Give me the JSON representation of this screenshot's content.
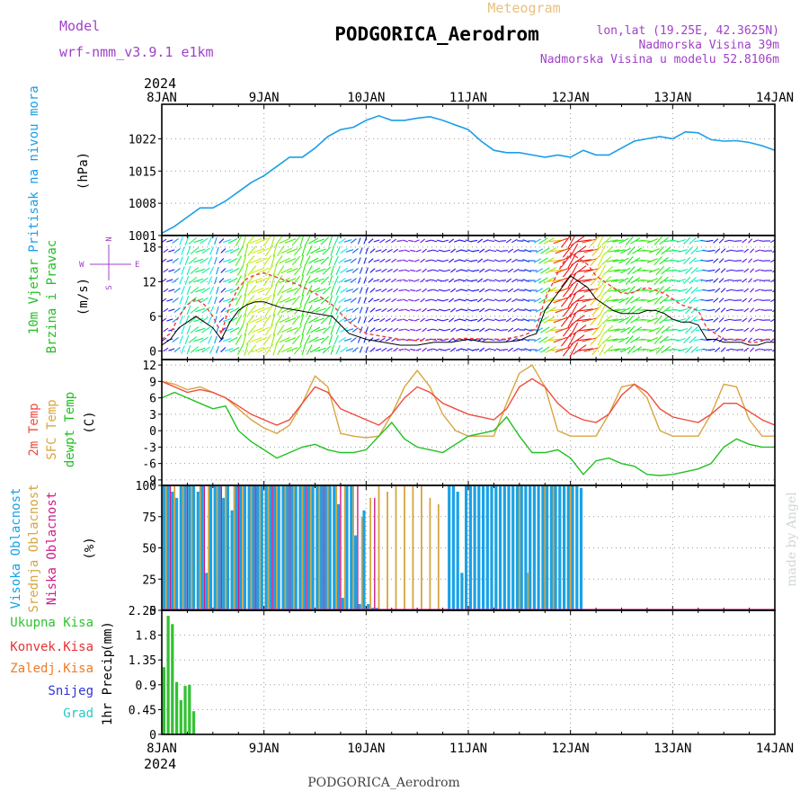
{
  "header": {
    "model_label": "Model",
    "model_name": "wrf-nmm_v3.9.1 e1km",
    "type_label": "Meteogram",
    "station": "PODGORICA_Aerodrom",
    "coords": "lon,lat (19.25E, 42.3625N)",
    "elevation": "Nadmorska Visina 39m",
    "model_elevation": "Nadmorska Visina u modelu 52.8106m",
    "footer_station": "PODGORICA_Aerodrom",
    "credit": "made by Angel"
  },
  "colors": {
    "pressure": "#1a9ee8",
    "temp2m": "#ef4b3c",
    "sfc": "#d9a640",
    "dewpt": "#22c022",
    "high_cloud": "#19a2e6",
    "mid_cloud": "#d4a640",
    "low_cloud": "#d01c8a",
    "precip": "#31c231",
    "conv": "#e63232",
    "frozen": "#f07a28",
    "snow": "#3232d2",
    "hail": "#28c8c8",
    "wind_label": "#22c022",
    "wind_axis": "#a040c8"
  },
  "chart_data": [
    {
      "id": "pressure",
      "type": "line",
      "ylabel": "Pritisak na nivou mora",
      "unit": "(hPa)",
      "yticks": [
        1001,
        1008,
        1015,
        1022
      ],
      "ylim": [
        1001,
        1029.5
      ],
      "x_hours": [
        0,
        3,
        6,
        9,
        12,
        15,
        18,
        21,
        24,
        27,
        30,
        33,
        36,
        39,
        42,
        45,
        48,
        51,
        54,
        57,
        60,
        63,
        66,
        69,
        72,
        75,
        78,
        81,
        84,
        87,
        90,
        93,
        96,
        99,
        102,
        105,
        108,
        111,
        114,
        117,
        120,
        123,
        126,
        129,
        132,
        135,
        138,
        141,
        144
      ],
      "values": [
        1001.5,
        1003.0,
        1005.0,
        1007.0,
        1007.0,
        1008.5,
        1010.5,
        1012.5,
        1014.0,
        1016.0,
        1018.0,
        1018.0,
        1020.0,
        1022.5,
        1024.0,
        1024.5,
        1026.0,
        1027.0,
        1026.0,
        1026.0,
        1026.5,
        1026.8,
        1026.0,
        1025.0,
        1024.0,
        1021.5,
        1019.5,
        1019.0,
        1019.0,
        1018.5,
        1018.0,
        1018.5,
        1018.0,
        1019.5,
        1018.5,
        1018.5,
        1020.0,
        1021.5,
        1022.0,
        1022.5,
        1022.0,
        1023.5,
        1023.3,
        1021.8,
        1021.5,
        1021.6,
        1021.2,
        1020.5,
        1019.5
      ]
    },
    {
      "id": "wind",
      "type": "line",
      "ylabel": "10m Vjetar",
      "ylabel2": "Brzina i Pravac",
      "unit": "(m/s)",
      "yticks": [
        0,
        6,
        12,
        18
      ],
      "ylim": [
        -1.5,
        20
      ],
      "compass": {
        "n": "N",
        "s": "S",
        "e": "E",
        "w": "W"
      },
      "x_hours": [
        0,
        2,
        4,
        6,
        8,
        10,
        12,
        14,
        16,
        18,
        20,
        22,
        24,
        28,
        32,
        36,
        40,
        44,
        48,
        52,
        56,
        60,
        64,
        68,
        72,
        76,
        80,
        84,
        86,
        88,
        90,
        92,
        94,
        96,
        98,
        100,
        102,
        104,
        106,
        108,
        110,
        112,
        114,
        116,
        118,
        120,
        122,
        124,
        126,
        128,
        130,
        132,
        134,
        136,
        138,
        140,
        142,
        144
      ],
      "speed": [
        1,
        2,
        4,
        5,
        6,
        5,
        4,
        2,
        5,
        7,
        8,
        8.5,
        8.5,
        7.5,
        7,
        6.5,
        6,
        3,
        2,
        1.5,
        1,
        1,
        1.5,
        1.5,
        2,
        1.5,
        1.5,
        1.8,
        2.5,
        3,
        7,
        9,
        11,
        13,
        12,
        11,
        9,
        8,
        7,
        6.5,
        6.5,
        6.5,
        7,
        7,
        6.5,
        5.5,
        5,
        5,
        4.5,
        2,
        2,
        1.5,
        1.5,
        1.5,
        1,
        1,
        1.5,
        1.5
      ],
      "gust": [
        2,
        3,
        6,
        8,
        9,
        8,
        6,
        3,
        8,
        11,
        12.5,
        13.2,
        13.5,
        12.5,
        11.5,
        10,
        8,
        5,
        3,
        2.5,
        2,
        1.8,
        2,
        2,
        2.2,
        2,
        2,
        2.5,
        3,
        4,
        9,
        12,
        15,
        17,
        16,
        15,
        13,
        12,
        11,
        10,
        10,
        10.5,
        11,
        10.5,
        10,
        9,
        8,
        7.5,
        7,
        4,
        3,
        2,
        2,
        2,
        1.5,
        1.5,
        2,
        2
      ]
    },
    {
      "id": "temperature",
      "type": "line",
      "ylabel": "2m Temp",
      "ylabel2": "SFC Temp",
      "ylabel3": "dewpt Temp",
      "unit": "(C)",
      "yticks": [
        -9,
        -6,
        -3,
        0,
        3,
        6,
        9,
        12
      ],
      "ylim": [
        -10,
        13
      ],
      "x_hours": [
        0,
        3,
        6,
        9,
        12,
        15,
        18,
        21,
        24,
        27,
        30,
        33,
        36,
        39,
        42,
        45,
        48,
        51,
        54,
        57,
        60,
        63,
        66,
        69,
        72,
        75,
        78,
        81,
        84,
        87,
        90,
        93,
        96,
        99,
        102,
        105,
        108,
        111,
        114,
        117,
        120,
        123,
        126,
        129,
        132,
        135,
        138,
        141,
        144
      ],
      "temp2m": [
        9,
        8,
        7,
        7.5,
        7,
        6,
        4.5,
        3,
        2,
        1,
        2,
        5,
        8,
        7,
        4,
        3,
        2,
        1,
        3,
        6,
        8,
        7,
        5,
        4,
        3,
        2.5,
        2,
        4,
        8,
        9.5,
        8,
        5,
        3,
        2,
        1.5,
        3,
        6.5,
        8.5,
        7,
        4,
        2.5,
        2,
        1.5,
        3,
        5,
        5,
        3.5,
        2,
        1
      ],
      "sfc": [
        9,
        8.5,
        7.5,
        8,
        7,
        6,
        4,
        2,
        0.5,
        -0.5,
        1,
        5,
        10,
        8,
        -0.5,
        -1,
        -1.3,
        -1,
        3,
        8,
        11,
        8,
        3,
        0,
        -1,
        -1,
        -1,
        5,
        10.5,
        12,
        8,
        0,
        -1,
        -1,
        -1,
        3,
        8,
        8.5,
        6,
        0,
        -1,
        -1,
        -1,
        3,
        8.5,
        8,
        2,
        -1,
        -1
      ],
      "dewpt": [
        6,
        7,
        6,
        5,
        4,
        4.5,
        0,
        -2,
        -3.5,
        -5,
        -4,
        -3,
        -2.5,
        -3.5,
        -4,
        -4,
        -3.5,
        -1,
        1.5,
        -1.5,
        -3,
        -3.5,
        -4,
        -2.5,
        -1,
        -0.5,
        0,
        2.5,
        -1,
        -4,
        -4,
        -3.5,
        -5,
        -8,
        -5.5,
        -5,
        -6,
        -6.5,
        -8,
        -8.2,
        -8,
        -7.5,
        -7,
        -6,
        -3,
        -1.5,
        -2.5,
        -3,
        -3
      ]
    },
    {
      "id": "cloud",
      "type": "bar",
      "ylabel": "Visoka Oblacnost",
      "ylabel2": "Srednja Oblacnost",
      "ylabel3": "Niska Oblacnost",
      "unit": "(%)",
      "yticks": [
        0,
        25,
        50,
        75,
        100
      ],
      "ylim": [
        0,
        100
      ],
      "high": [
        [
          0.5,
          100
        ],
        [
          1.5,
          100
        ],
        [
          2.5,
          95
        ],
        [
          3.5,
          90
        ],
        [
          4.5,
          100
        ],
        [
          5.5,
          100
        ],
        [
          6.5,
          100
        ],
        [
          7.5,
          100
        ],
        [
          8.5,
          95
        ],
        [
          9.5,
          100
        ],
        [
          10.5,
          30
        ],
        [
          11.5,
          100
        ],
        [
          12.5,
          100
        ],
        [
          13.5,
          100
        ],
        [
          14.5,
          90
        ],
        [
          15.5,
          100
        ],
        [
          16.5,
          80
        ],
        [
          17.5,
          100
        ],
        [
          18.5,
          100
        ],
        [
          19.5,
          100
        ],
        [
          20.5,
          100
        ],
        [
          21.5,
          100
        ],
        [
          22.5,
          100
        ],
        [
          23.5,
          100
        ],
        [
          24.5,
          100
        ],
        [
          25.5,
          100
        ],
        [
          26.5,
          100
        ],
        [
          27.5,
          100
        ],
        [
          28.5,
          100
        ],
        [
          29.5,
          100
        ],
        [
          30.5,
          100
        ],
        [
          31.5,
          100
        ],
        [
          32.5,
          100
        ],
        [
          33.5,
          100
        ],
        [
          34.5,
          100
        ],
        [
          35.5,
          100
        ],
        [
          36.5,
          100
        ],
        [
          37.5,
          100
        ],
        [
          38.5,
          100
        ],
        [
          39.5,
          100
        ],
        [
          40.5,
          100
        ],
        [
          41.5,
          85
        ],
        [
          42.5,
          10
        ],
        [
          43.5,
          100
        ],
        [
          44.5,
          100
        ],
        [
          45.5,
          60
        ],
        [
          46.5,
          5
        ],
        [
          47.5,
          80
        ],
        [
          48.5,
          5
        ],
        [
          49.5,
          2
        ],
        [
          50.5,
          2
        ],
        [
          67.5,
          100
        ],
        [
          68.5,
          100
        ],
        [
          69.5,
          95
        ],
        [
          70.5,
          30
        ],
        [
          71.5,
          100
        ],
        [
          72.5,
          100
        ],
        [
          73.5,
          100
        ],
        [
          74.5,
          100
        ],
        [
          75.5,
          100
        ],
        [
          76.5,
          100
        ],
        [
          77.5,
          100
        ],
        [
          78.5,
          100
        ],
        [
          79.5,
          100
        ],
        [
          80.5,
          100
        ],
        [
          81.5,
          100
        ],
        [
          82.5,
          100
        ],
        [
          83.5,
          100
        ],
        [
          84.5,
          100
        ],
        [
          85.5,
          100
        ],
        [
          86.5,
          100
        ],
        [
          87.5,
          100
        ],
        [
          88.5,
          100
        ],
        [
          89.5,
          100
        ],
        [
          90.5,
          100
        ],
        [
          91.5,
          100
        ],
        [
          92.5,
          100
        ],
        [
          93.5,
          100
        ],
        [
          94.5,
          100
        ],
        [
          95.5,
          100
        ],
        [
          96.5,
          100
        ],
        [
          97.5,
          100
        ],
        [
          98.5,
          98
        ]
      ],
      "mid": [
        [
          1,
          100
        ],
        [
          3,
          100
        ],
        [
          5,
          100
        ],
        [
          7,
          100
        ],
        [
          9,
          100
        ],
        [
          11,
          100
        ],
        [
          13,
          100
        ],
        [
          15,
          100
        ],
        [
          17,
          100
        ],
        [
          19,
          100
        ],
        [
          21,
          100
        ],
        [
          23,
          100
        ],
        [
          25,
          100
        ],
        [
          27,
          100
        ],
        [
          29,
          100
        ],
        [
          31,
          100
        ],
        [
          33,
          100
        ],
        [
          35,
          100
        ],
        [
          37,
          100
        ],
        [
          39,
          100
        ],
        [
          41,
          100
        ],
        [
          43,
          100
        ],
        [
          45,
          100
        ],
        [
          47,
          75
        ],
        [
          49,
          90
        ],
        [
          51,
          100
        ],
        [
          53,
          95
        ],
        [
          55,
          100
        ],
        [
          57,
          100
        ],
        [
          59,
          100
        ],
        [
          61,
          100
        ],
        [
          63,
          90
        ],
        [
          65,
          85
        ],
        [
          67,
          0
        ],
        [
          84,
          100
        ],
        [
          86,
          30
        ],
        [
          90,
          100
        ],
        [
          92,
          100
        ],
        [
          96,
          100
        ]
      ],
      "low": [
        [
          2,
          100
        ],
        [
          6,
          100
        ],
        [
          10,
          100
        ],
        [
          14,
          100
        ],
        [
          18,
          100
        ],
        [
          22,
          100
        ],
        [
          26,
          100
        ],
        [
          30,
          100
        ],
        [
          34,
          100
        ],
        [
          38,
          100
        ],
        [
          42,
          100
        ],
        [
          46,
          100
        ],
        [
          50,
          90
        ]
      ]
    },
    {
      "id": "precip",
      "type": "bar",
      "ylabel": "1hr Precip",
      "unit": "(mm)",
      "yticks": [
        0,
        0.45,
        0.9,
        1.35,
        1.8,
        2.25
      ],
      "ylim": [
        0,
        2.25
      ],
      "legend": [
        "Ukupna Kisa",
        "Konvek.Kisa",
        "Zaledj.Kisa",
        "Snijeg",
        "Grad"
      ],
      "x_hours": [
        0.5,
        1.5,
        2.5,
        3.5,
        4.5,
        5.5,
        6.5,
        7.5,
        8.5
      ],
      "values": [
        1.22,
        2.15,
        2.0,
        0.95,
        0.62,
        0.88,
        0.9,
        0.42,
        0
      ]
    }
  ],
  "xaxis": {
    "labels": [
      "8JAN",
      "9JAN",
      "10JAN",
      "11JAN",
      "12JAN",
      "13JAN",
      "14JAN"
    ],
    "year": "2024",
    "total_hours": 144
  }
}
